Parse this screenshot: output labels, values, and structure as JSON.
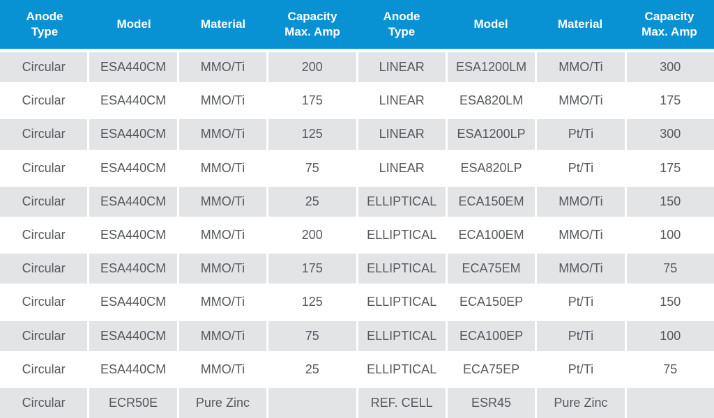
{
  "chart_data": {
    "type": "table",
    "columns": [
      "Anode\nType",
      "Model",
      "Material",
      "Capacity\nMax. Amp",
      "Anode\nType",
      "Model",
      "Material",
      "Capacity\nMax. Amp"
    ],
    "rows": [
      [
        "Circular",
        "ESA440CM",
        "MMO/Ti",
        "200",
        "LINEAR",
        "ESA1200LM",
        "MMO/Ti",
        "300"
      ],
      [
        "Circular",
        "ESA440CM",
        "MMO/Ti",
        "175",
        "LINEAR",
        "ESA820LM",
        "MMO/Ti",
        "175"
      ],
      [
        "Circular",
        "ESA440CM",
        "MMO/Ti",
        "125",
        "LINEAR",
        "ESA1200LP",
        "Pt/Ti",
        "300"
      ],
      [
        "Circular",
        "ESA440CM",
        "MMO/Ti",
        "75",
        "LINEAR",
        "ESA820LP",
        "Pt/Ti",
        "175"
      ],
      [
        "Circular",
        "ESA440CM",
        "MMO/Ti",
        "25",
        "ELLIPTICAL",
        "ECA150EM",
        "MMO/Ti",
        "150"
      ],
      [
        "Circular",
        "ESA440CM",
        "MMO/Ti",
        "200",
        "ELLIPTICAL",
        "ECA100EM",
        "MMO/Ti",
        "100"
      ],
      [
        "Circular",
        "ESA440CM",
        "MMO/Ti",
        "175",
        "ELLIPTICAL",
        "ECA75EM",
        "MMO/Ti",
        "75"
      ],
      [
        "Circular",
        "ESA440CM",
        "MMO/Ti",
        "125",
        "ELLIPTICAL",
        "ECA150EP",
        "Pt/Ti",
        "150"
      ],
      [
        "Circular",
        "ESA440CM",
        "MMO/Ti",
        "75",
        "ELLIPTICAL",
        "ECA100EP",
        "Pt/Ti",
        "100"
      ],
      [
        "Circular",
        "ESA440CM",
        "MMO/Ti",
        "25",
        "ELLIPTICAL",
        "ECA75EP",
        "Pt/Ti",
        "75"
      ],
      [
        "Circular",
        "ECR50E",
        "Pure Zinc",
        "",
        "REF. CELL",
        "ESR45",
        "Pure Zinc",
        ""
      ]
    ],
    "layout": {
      "grid": "off",
      "striped_rows": true
    }
  },
  "style": {
    "header_bg": "#0992D3",
    "header_text_color": "#FFFFFF",
    "alt_row_bg": "#E3E4E6",
    "row_bg": "#FFFFFF",
    "cell_text_color": "#55585C"
  }
}
